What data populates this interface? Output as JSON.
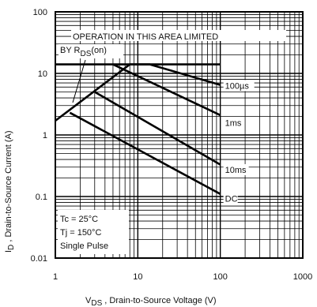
{
  "chart_data": {
    "type": "line",
    "title": "",
    "x_scale": "log",
    "y_scale": "log",
    "xlim": [
      1,
      1000
    ],
    "ylim": [
      0.01,
      100
    ],
    "x_ticks": [
      "1",
      "10",
      "100",
      "1000"
    ],
    "y_ticks": [
      "0.01",
      "0.1",
      "1",
      "10",
      "100"
    ],
    "xlabel": {
      "main": "V",
      "sub": "DS",
      "rest": " , Drain-to-Source Voltage (V)"
    },
    "ylabel": {
      "main": "I",
      "sub": "D",
      "rest": " , Drain-to-Source Current (A)"
    },
    "annotations": {
      "operation_line1": "OPERATION IN THIS AREA LIMITED",
      "operation_line2_pre": "BY R",
      "operation_line2_sub": "DS",
      "operation_line2_post": "(on)",
      "conditions": [
        "Tc = 25°C",
        "Tj = 150°C",
        "Single Pulse"
      ]
    },
    "series": [
      {
        "name": "RDS(on) limit",
        "points": [
          [
            1,
            1.7
          ],
          [
            8,
            14
          ]
        ]
      },
      {
        "name": "100µs",
        "points": [
          [
            8,
            14
          ],
          [
            14,
            14
          ],
          [
            100,
            6.5
          ]
        ]
      },
      {
        "name": "1ms",
        "points": [
          [
            5,
            14
          ],
          [
            100,
            2.1
          ]
        ]
      },
      {
        "name": "10ms",
        "points": [
          [
            3,
            5
          ],
          [
            100,
            0.33
          ]
        ]
      },
      {
        "name": "DC",
        "points": [
          [
            1.5,
            2.3
          ],
          [
            100,
            0.11
          ]
        ]
      },
      {
        "name": "ID max",
        "points": [
          [
            1,
            14
          ],
          [
            100,
            14
          ]
        ]
      }
    ],
    "series_labels": [
      {
        "name": "100µs",
        "text": "100µs",
        "at": [
          100,
          5.8
        ]
      },
      {
        "name": "1ms",
        "text": "1ms",
        "at": [
          100,
          1.45
        ]
      },
      {
        "name": "10ms",
        "text": "10ms",
        "at": [
          100,
          0.25
        ]
      },
      {
        "name": "DC",
        "text": "DC",
        "at": [
          100,
          0.085
        ]
      }
    ]
  }
}
